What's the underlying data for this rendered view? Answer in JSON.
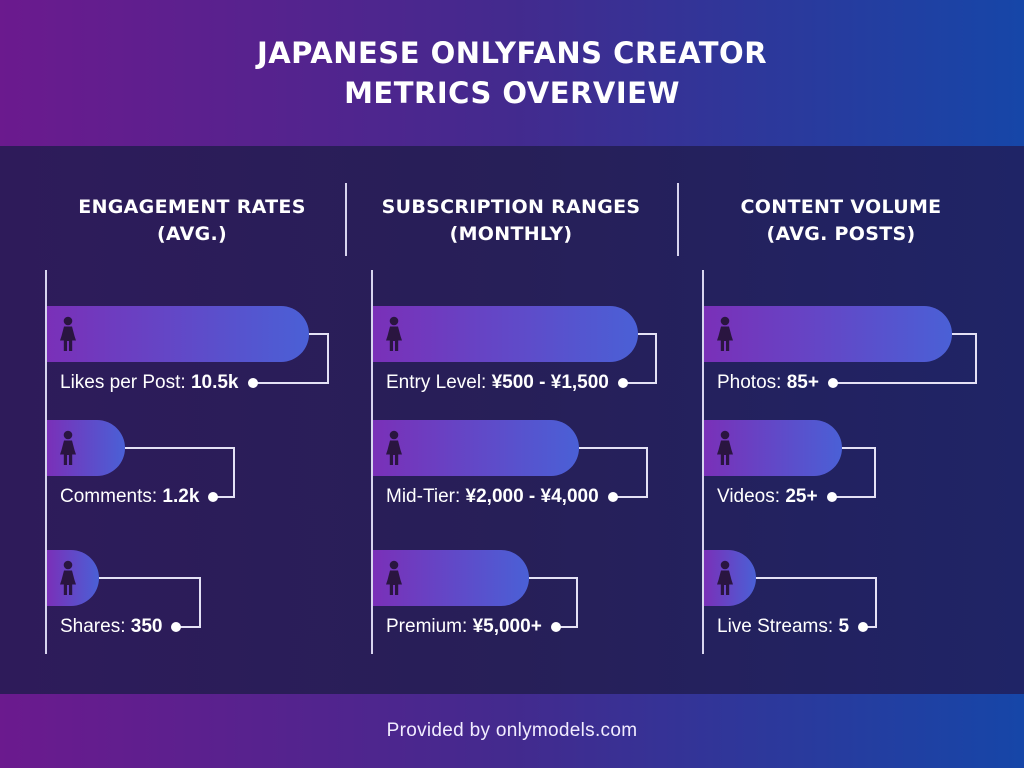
{
  "header": {
    "title_line1": "JAPANESE ONLYFANS CREATOR",
    "title_line2": "METRICS OVERVIEW"
  },
  "footer": {
    "text": "Provided by onlymodels.com"
  },
  "icon": "female-figure-icon",
  "colors": {
    "bar_start": "#7a30b8",
    "bar_end": "#4a60d6",
    "header_left": "#6b1a8e",
    "header_right": "#1646a8",
    "background": "#251d55"
  },
  "chart_data": [
    {
      "type": "bar",
      "orientation": "horizontal",
      "title_line1": "ENGAGEMENT RATES",
      "title_line2": "(AVG.)",
      "items": [
        {
          "label": "Likes per Post: ",
          "value_text": "10.5k",
          "value": 10500
        },
        {
          "label": "Comments: ",
          "value_text": "1.2k",
          "value": 1200
        },
        {
          "label": "Shares: ",
          "value_text": "350",
          "value": 350
        }
      ]
    },
    {
      "type": "bar",
      "orientation": "horizontal",
      "title_line1": "SUBSCRIPTION RANGES",
      "title_line2": "(MONTHLY)",
      "items": [
        {
          "label": "Entry Level: ",
          "value_text": "¥500 - ¥1,500",
          "value": 1500
        },
        {
          "label": "Mid-Tier: ",
          "value_text": "¥2,000 - ¥4,000",
          "value": 4000
        },
        {
          "label": "Premium: ",
          "value_text": "¥5,000+",
          "value": 5000
        }
      ]
    },
    {
      "type": "bar",
      "orientation": "horizontal",
      "title_line1": "CONTENT VOLUME",
      "title_line2": "(AVG. POSTS)",
      "items": [
        {
          "label": "Photos: ",
          "value_text": "85+",
          "value": 85
        },
        {
          "label": "Videos: ",
          "value_text": "25+",
          "value": 25
        },
        {
          "label": "Live Streams: ",
          "value_text": "5",
          "value": 5
        }
      ]
    }
  ]
}
